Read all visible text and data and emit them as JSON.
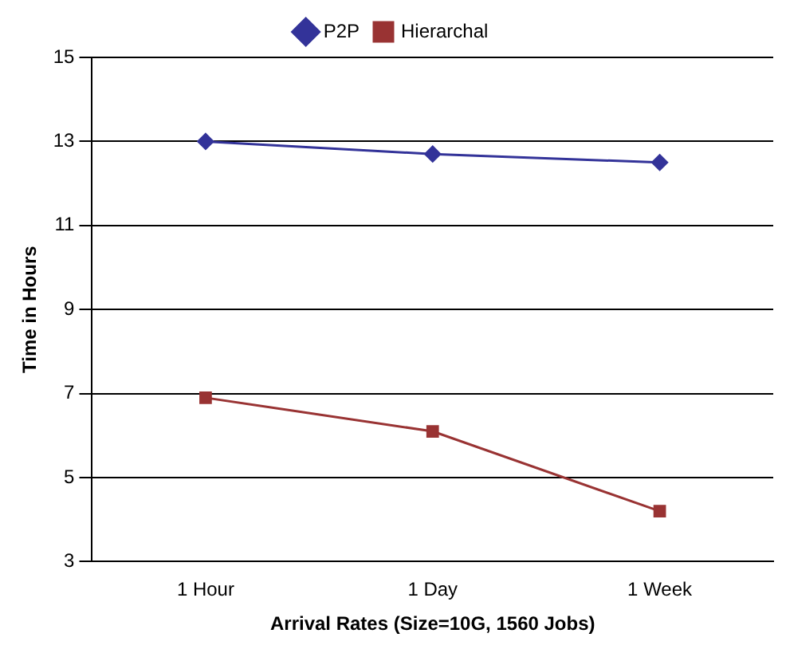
{
  "chart_data": {
    "type": "line",
    "xlabel": "Arrival Rates (Size=10G, 1560 Jobs)",
    "ylabel": "Time in Hours",
    "categories": [
      "1 Hour",
      "1 Day",
      "1 Week"
    ],
    "series": [
      {
        "name": "P2P",
        "color": "#333399",
        "marker": "diamond",
        "values": [
          13.0,
          12.7,
          12.5
        ]
      },
      {
        "name": "Hierarchal",
        "color": "#993333",
        "marker": "square",
        "values": [
          6.9,
          6.1,
          4.2
        ]
      }
    ],
    "ylim": [
      3,
      15
    ],
    "yticks": [
      3,
      5,
      7,
      9,
      11,
      13,
      15
    ],
    "grid": "y",
    "legend": "top"
  }
}
